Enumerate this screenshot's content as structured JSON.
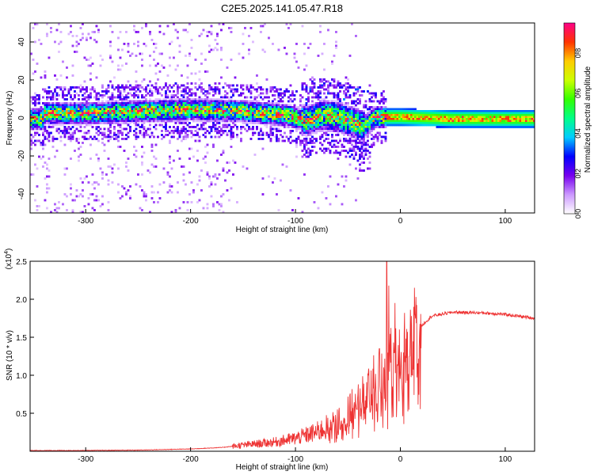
{
  "title": "C2E5.2025.141.05.47.R18",
  "chart_data": [
    {
      "type": "heatmap",
      "xlabel": "Height of straight line (km)",
      "ylabel": "Frequency (Hz)",
      "xlim": [
        -353,
        128
      ],
      "ylim": [
        -50,
        50
      ],
      "xticks": [
        -300,
        -200,
        -100,
        0,
        100
      ],
      "xtick_labels": [
        "-300",
        "-200",
        "-100",
        "0",
        "100"
      ],
      "yticks": [
        -40,
        -20,
        0,
        20,
        40
      ],
      "ytick_labels": [
        "-40",
        "-20",
        "0",
        "20",
        "40"
      ],
      "colorbar": {
        "label": "Normalized spectral amplitude",
        "range": [
          0,
          0.95
        ],
        "ticks": [
          0,
          0.2,
          0.4,
          0.6,
          0.8
        ],
        "tick_labels": [
          "0.0",
          "0.2",
          "0.4",
          "0.6",
          "0.8"
        ],
        "colormap": [
          "#ffffff",
          "#cc99ff",
          "#7700ee",
          "#0000ff",
          "#00ccff",
          "#00ff88",
          "#33ff00",
          "#ccff00",
          "#ffcc00",
          "#ff3300",
          "#ff0088"
        ]
      },
      "signal_center_hz": [
        {
          "x": -340,
          "f": 3
        },
        {
          "x": -300,
          "f": 3
        },
        {
          "x": -250,
          "f": 4
        },
        {
          "x": -200,
          "f": 5
        },
        {
          "x": -150,
          "f": 4
        },
        {
          "x": -110,
          "f": 2
        },
        {
          "x": -90,
          "f": -1
        },
        {
          "x": -75,
          "f": 2
        },
        {
          "x": -60,
          "f": 1
        },
        {
          "x": -45,
          "f": -2
        },
        {
          "x": -35,
          "f": -4
        },
        {
          "x": -25,
          "f": 1
        },
        {
          "x": -10,
          "f": 1
        },
        {
          "x": 0,
          "f": 1
        },
        {
          "x": 50,
          "f": 0
        },
        {
          "x": 128,
          "f": 0
        }
      ]
    },
    {
      "type": "line",
      "xlabel": "Height of straight line (km)",
      "ylabel": "SNR (10 * v/v)",
      "y_multiplier_label": "(x10",
      "y_multiplier_exp": "4",
      "y_multiplier_close": ")",
      "xlim": [
        -353,
        128
      ],
      "ylim": [
        0,
        2.5
      ],
      "xticks": [
        -300,
        -200,
        -100,
        0,
        100
      ],
      "xtick_labels": [
        "-300",
        "-200",
        "-100",
        "0",
        "100"
      ],
      "yticks": [
        0.5,
        1.0,
        1.5,
        2.0,
        2.5
      ],
      "ytick_labels": [
        "0.5",
        "1.0",
        "1.5",
        "2.0",
        "2.5"
      ],
      "series": [
        {
          "name": "SNR",
          "color": "#ee3333",
          "envelope_x": [
            -353,
            -300,
            -250,
            -200,
            -170,
            -150,
            -120,
            -100,
            -80,
            -60,
            -45,
            -30,
            -20,
            -15,
            -10,
            0,
            10,
            20,
            30,
            50,
            80,
            100,
            128
          ],
          "envelope_y": [
            0.01,
            0.01,
            0.015,
            0.03,
            0.05,
            0.08,
            0.12,
            0.17,
            0.25,
            0.38,
            0.58,
            0.8,
            1.0,
            1.1,
            1.15,
            1.25,
            1.45,
            1.65,
            1.78,
            1.83,
            1.82,
            1.8,
            1.75
          ],
          "peaks": [
            {
              "x": -60,
              "y": 0.55
            },
            {
              "x": -50,
              "y": 0.72
            },
            {
              "x": -40,
              "y": 0.88
            },
            {
              "x": -30,
              "y": 1.05
            },
            {
              "x": -20,
              "y": 1.35
            },
            {
              "x": -13,
              "y": 2.5
            },
            {
              "x": -11,
              "y": 2.18
            },
            {
              "x": -5,
              "y": 1.95
            },
            {
              "x": 3,
              "y": 1.3
            },
            {
              "x": 14,
              "y": 1.8
            }
          ]
        }
      ]
    }
  ]
}
